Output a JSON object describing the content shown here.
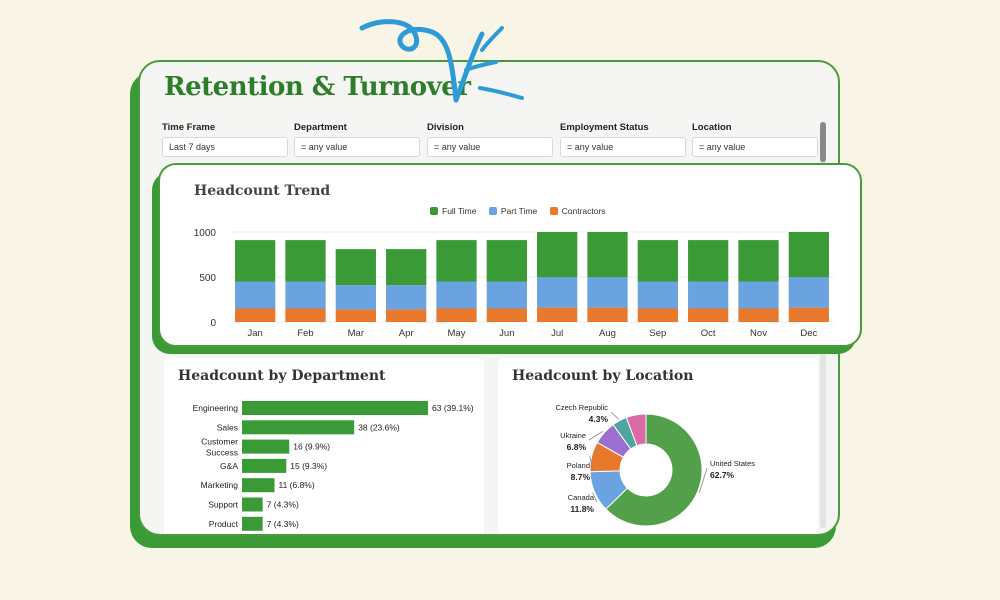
{
  "dashboard": {
    "title": "Retention & Turnover",
    "filters": [
      {
        "label": "Time Frame",
        "value": "Last 7 days"
      },
      {
        "label": "Department",
        "value": "= any value"
      },
      {
        "label": "Division",
        "value": "= any value"
      },
      {
        "label": "Employment Status",
        "value": "= any value"
      },
      {
        "label": "Location",
        "value": "= any value"
      }
    ]
  },
  "colors": {
    "full_time": "#3a9a36",
    "part_time": "#6aa3e0",
    "contractors": "#e8782c",
    "brand_green": "#2e7d2a",
    "scribble": "#2f9bd6"
  },
  "chart_data": [
    {
      "type": "bar",
      "title": "Headcount Trend",
      "stacked": true,
      "legend_position": "top",
      "categories": [
        "Jan",
        "Feb",
        "Mar",
        "Apr",
        "May",
        "Jun",
        "Jul",
        "Aug",
        "Sep",
        "Oct",
        "Nov",
        "Dec"
      ],
      "yticks": [
        0,
        500,
        1000
      ],
      "ylim": [
        0,
        1000
      ],
      "series": [
        {
          "name": "Contractors",
          "color": "#e8782c",
          "values": [
            150,
            150,
            140,
            140,
            150,
            150,
            160,
            160,
            150,
            150,
            150,
            160
          ]
        },
        {
          "name": "Part Time",
          "color": "#6aa3e0",
          "values": [
            300,
            300,
            270,
            270,
            300,
            300,
            340,
            340,
            300,
            300,
            300,
            340
          ]
        },
        {
          "name": "Full Time",
          "color": "#3a9a36",
          "values": [
            460,
            460,
            400,
            400,
            460,
            460,
            500,
            500,
            460,
            460,
            460,
            500
          ]
        }
      ]
    },
    {
      "type": "bar",
      "orientation": "horizontal",
      "title": "Headcount by Department",
      "categories": [
        "Engineering",
        "Sales",
        "Customer Success",
        "G&A",
        "Marketing",
        "Support",
        "Product"
      ],
      "category_lines": [
        [
          "Engineering"
        ],
        [
          "Sales"
        ],
        [
          "Customer",
          "Success"
        ],
        [
          "G&A"
        ],
        [
          "Marketing"
        ],
        [
          "Support"
        ],
        [
          "Product"
        ]
      ],
      "values": [
        63,
        38,
        16,
        15,
        11,
        7,
        7
      ],
      "labels": [
        "63 (39.1%)",
        "38 (23.6%)",
        "16 (9.9%)",
        "15 (9.3%)",
        "11 (6.8%)",
        "7 (4.3%)",
        "7 (4.3%)"
      ]
    },
    {
      "type": "pie",
      "donut": true,
      "title": "Headcount by Location",
      "slices": [
        {
          "label": "United States",
          "pct": "62.7%",
          "value": 62.7,
          "color": "#52a04a"
        },
        {
          "label": "Canada",
          "pct": "11.8%",
          "value": 11.8,
          "color": "#6aa3e0"
        },
        {
          "label": "Poland",
          "pct": "8.7%",
          "value": 8.7,
          "color": "#e8782c"
        },
        {
          "label": "Ukraine",
          "pct": "6.8%",
          "value": 6.8,
          "color": "#9b6fcf"
        },
        {
          "label": "Czech Republic",
          "pct": "4.3%",
          "value": 4.3,
          "color": "#4fa3a0"
        },
        {
          "label": "",
          "pct": "",
          "value": 5.7,
          "color": "#d96aa7"
        }
      ]
    }
  ]
}
